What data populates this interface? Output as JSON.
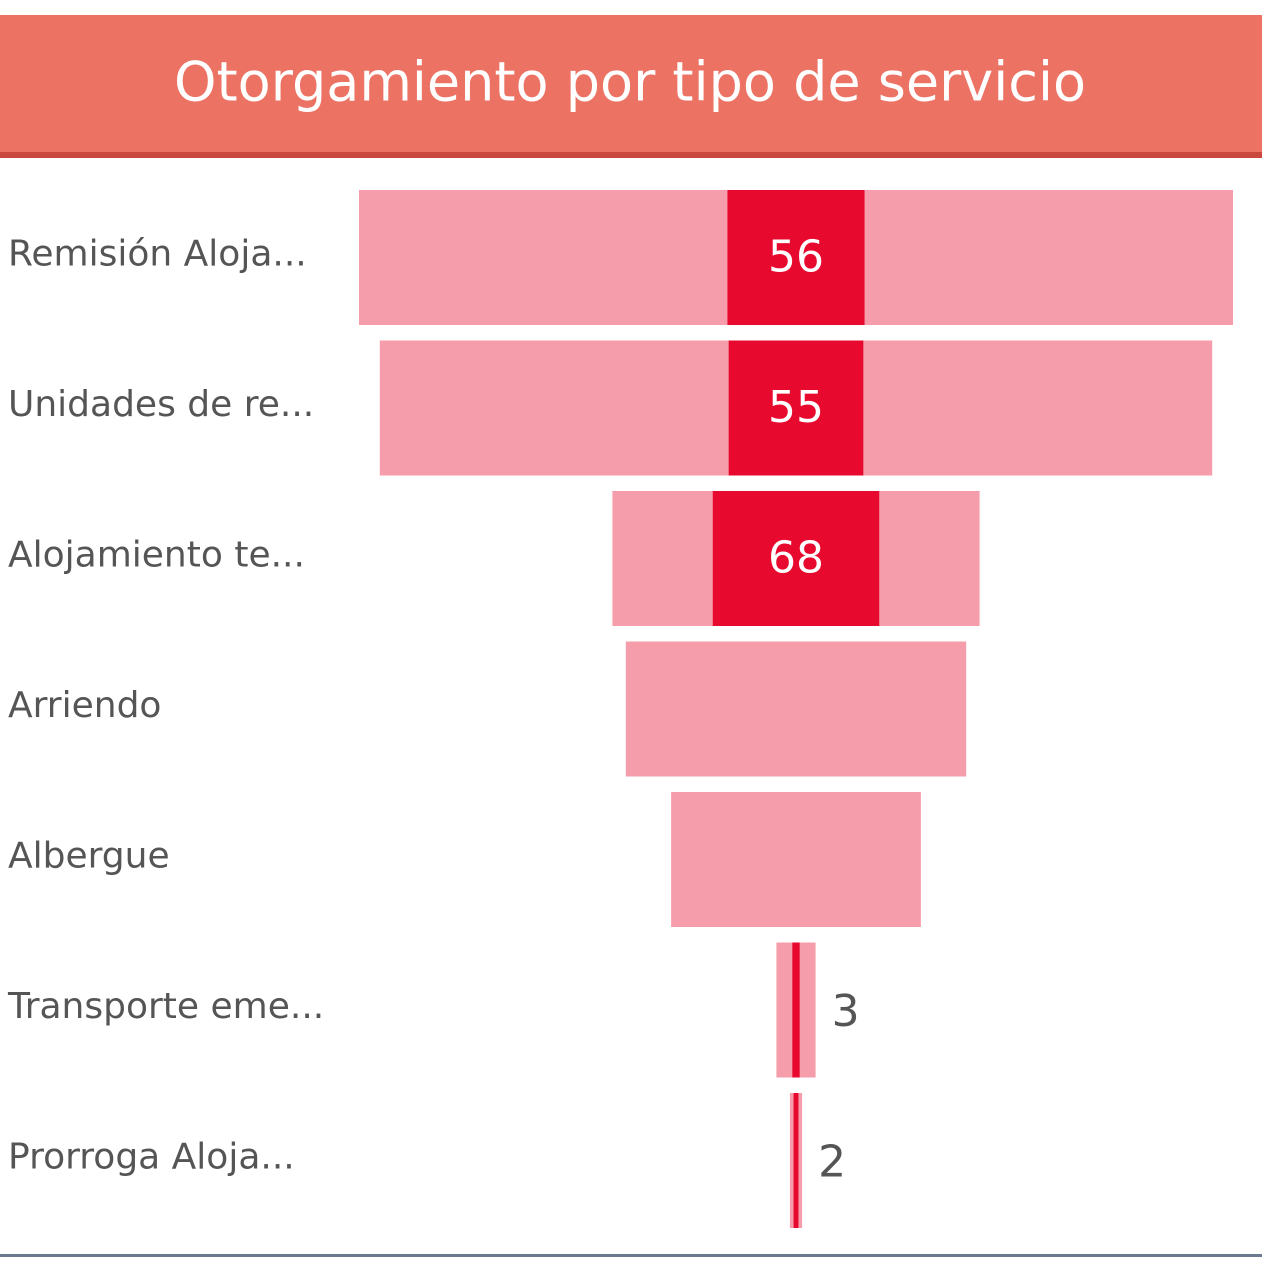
{
  "chart_data": {
    "type": "funnel",
    "title": "Otorgamiento por tipo de servicio",
    "categories": [
      "Remisión Aloja...",
      "Unidades de re...",
      "Alojamiento te...",
      "Arriendo",
      "Albergue",
      "Transporte eme...",
      "Prorroga Aloja..."
    ],
    "series": [
      {
        "color": "#f59dab",
        "values": [
          357,
          340,
          150,
          139,
          102,
          16,
          5
        ]
      },
      {
        "color": "#e8092e",
        "values": [
          56,
          55,
          68,
          null,
          null,
          3,
          2
        ]
      }
    ]
  }
}
